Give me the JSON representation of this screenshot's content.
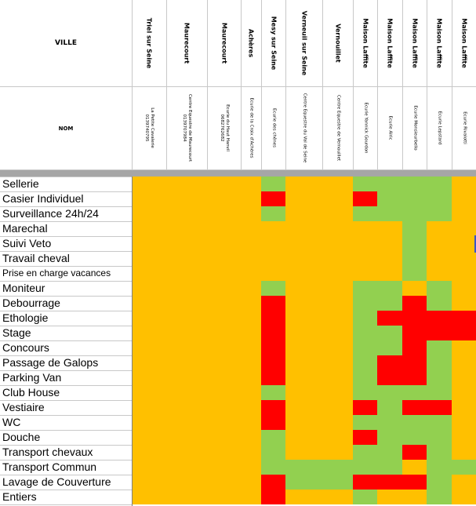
{
  "header": {
    "ville_label": "VILLE",
    "nom_label": "NOM"
  },
  "columns": [
    {
      "ville": "Triel sur Seine",
      "nom": [
        "La Petite Cavalerie",
        "0139740795"
      ]
    },
    {
      "ville": "Maurecourt",
      "nom": [
        "Centre Equestre de Maurecourt",
        "0139707984"
      ]
    },
    {
      "ville": "Maurecourt",
      "nom": [
        "Ecurie du Haut Hanvil",
        "0682762682"
      ]
    },
    {
      "ville": "Achères",
      "nom": [
        "Ecurie de la Croix d'Achères"
      ]
    },
    {
      "ville": "Mesy sur Seine",
      "nom": [
        "Ecurie des chênes"
      ]
    },
    {
      "ville": "Verneuil sur Seine",
      "nom": [
        "Centre Equestre du Val de Seine"
      ]
    },
    {
      "ville": "Vernouillet",
      "nom": [
        "Centre Equestre de Vernouillet"
      ]
    },
    {
      "ville": "Maison Laffite",
      "nom": [
        "Ecurie Yannick Gourdon"
      ]
    },
    {
      "ville": "Maison Laffite",
      "nom": [
        "Ecurie Alric"
      ]
    },
    {
      "ville": "Maison Laffite",
      "nom": [
        "Ecurie Monsieurbello"
      ]
    },
    {
      "ville": "Maison Laffite",
      "nom": [
        "Ecurie Lepstard"
      ]
    },
    {
      "ville": "Maison Laffite",
      "nom": [
        "Ecurie Rivalotti"
      ]
    }
  ],
  "rows": [
    "Sellerie",
    "Casier Individuel",
    "Surveillance 24h/24",
    "Marechal",
    "Suivi Veto",
    "Travail cheval",
    "Prise en charge vacances",
    "Moniteur",
    "Debourrage",
    "Ethologie",
    "Stage",
    "Concours",
    "Passage de Galops",
    "Parking Van",
    "Club House",
    "Vestiaire",
    "WC",
    "Douche",
    "Transport chevaux",
    "Transport Commun",
    "Lavage de Couverture",
    "Entiers"
  ],
  "legend_colors": {
    "O": "#ffc000",
    "G": "#92d050",
    "R": "#ff0000"
  },
  "grid": [
    "OOOOGOOGGGGO",
    "OOOOROORGGGO",
    "OOOOGOOGGGGO",
    "OOOOOOOOOGOO",
    "OOOOOOOOOGOO",
    "OOOOOOOOOGOO",
    "OOOOOOOOOGOO",
    "OOOOGOOGGOGO",
    "OOOOROOGGRGO",
    "OOOOROOGRRRR",
    "OOOOROOGGRRR",
    "OOOOROOGGRGO",
    "OOOOROOGRRGO",
    "OOOOROOGRRGO",
    "OOOOGOOGGGGO",
    "OOOOROORGRRO",
    "OOOOROOGGGGO",
    "OOOOGOORGGGO",
    "OOOOGOOGGRGO",
    "OOOOGGGGGOGG",
    "OOOORGGRRRGO",
    "OOOOROOGOOGO"
  ]
}
